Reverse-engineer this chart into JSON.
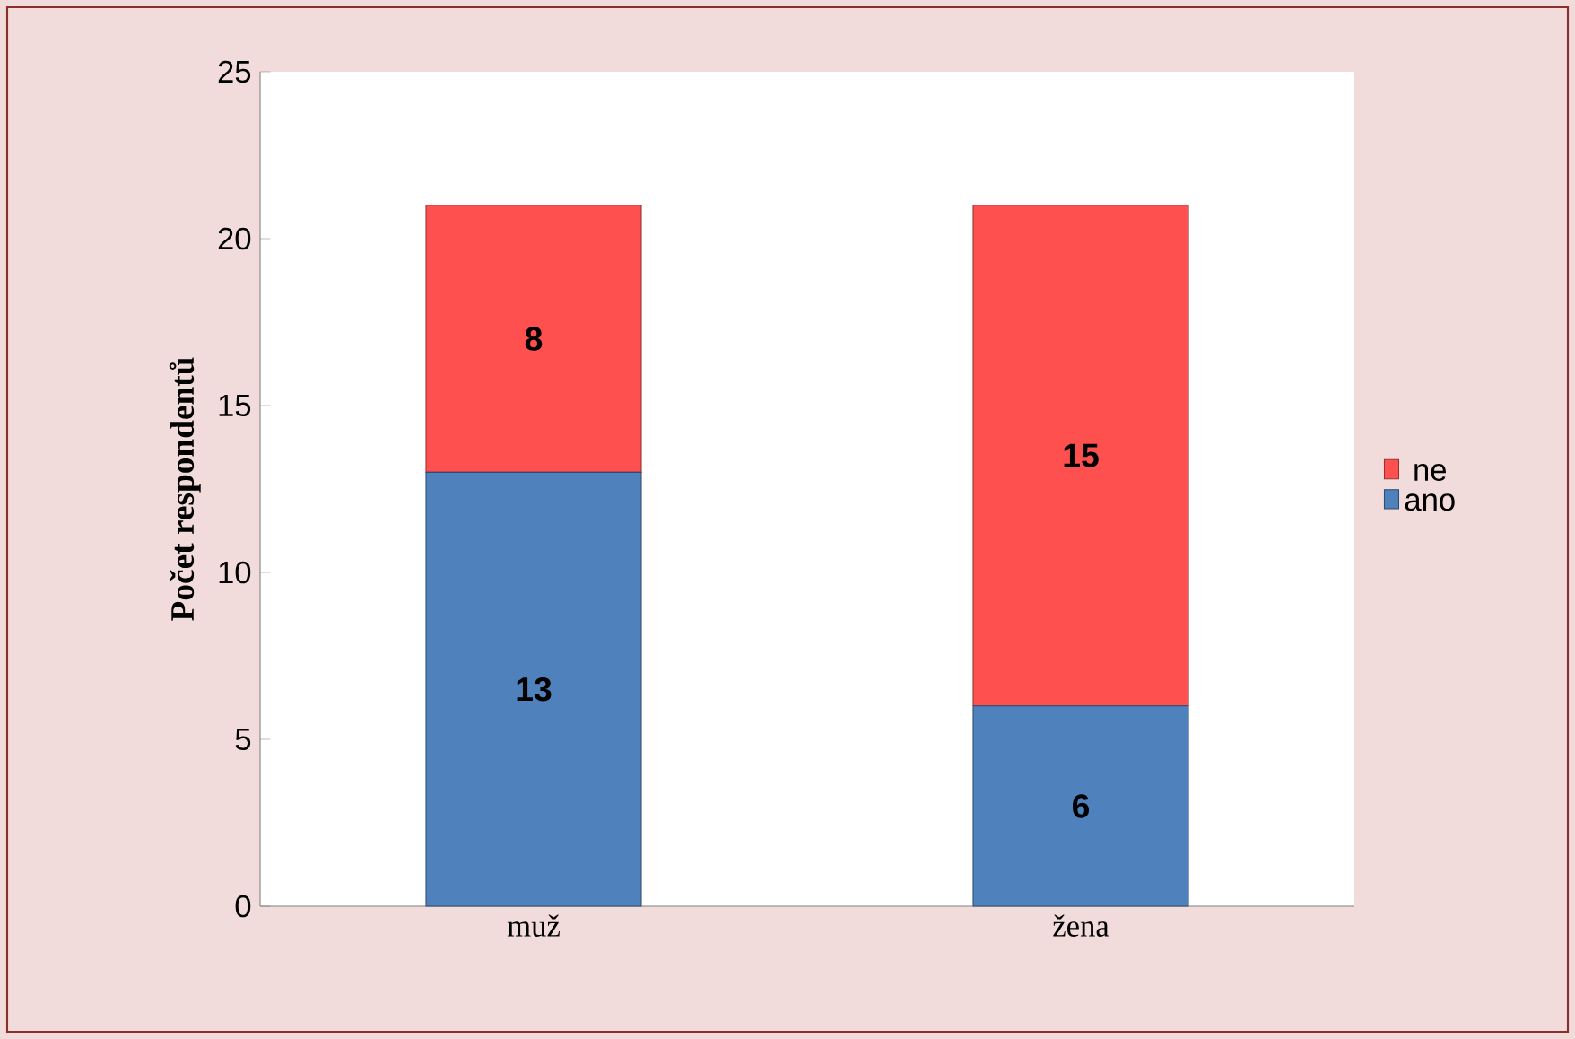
{
  "chart_data": {
    "type": "bar",
    "stacked": true,
    "ylabel": "Počet respondentů",
    "categories": [
      "muž",
      "žena"
    ],
    "series": [
      {
        "name": "ano",
        "color": "#4f81bd",
        "values": [
          13,
          6
        ]
      },
      {
        "name": "ne",
        "color": "#ff5050",
        "values": [
          8,
          15
        ]
      }
    ],
    "ylim": [
      0,
      25
    ],
    "yticks": [
      0,
      5,
      10,
      15,
      20,
      25
    ],
    "legend": "right",
    "data_labels": true
  }
}
